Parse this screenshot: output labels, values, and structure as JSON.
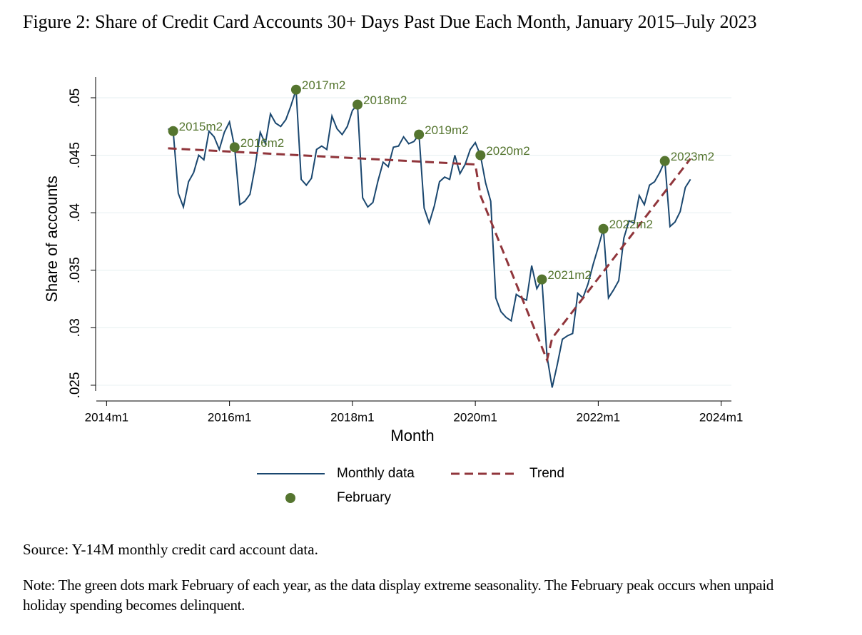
{
  "figure": {
    "title": "Figure 2: Share of Credit Card Accounts 30+ Days Past Due Each Month, January 2015–July 2023",
    "source": "Source: Y-14M monthly credit card account data.",
    "note": "Note: The green dots mark February of each year, as the data display extreme seasonality. The February peak occurs when unpaid holiday spending becomes delinquent."
  },
  "chart_data": {
    "type": "line",
    "x_label": "Month",
    "y_label": "Share of accounts",
    "xlim": [
      "2013m11",
      "2024m3"
    ],
    "xticks": [
      "2014m1",
      "2016m1",
      "2018m1",
      "2020m1",
      "2022m1",
      "2024m1"
    ],
    "ylim": [
      0.0245,
      0.0518
    ],
    "yticks": [
      {
        "value": 0.025,
        "label": ".025"
      },
      {
        "value": 0.03,
        "label": ".03"
      },
      {
        "value": 0.035,
        "label": ".035"
      },
      {
        "value": 0.04,
        "label": ".04"
      },
      {
        "value": 0.045,
        "label": ".045"
      },
      {
        "value": 0.05,
        "label": ".05"
      }
    ],
    "grid": true,
    "series": [
      {
        "name": "Monthly data",
        "color": "#1a476f",
        "style": "solid",
        "x": [
          "2015m1",
          "2015m2",
          "2015m3",
          "2015m4",
          "2015m5",
          "2015m6",
          "2015m7",
          "2015m8",
          "2015m9",
          "2015m10",
          "2015m11",
          "2015m12",
          "2016m1",
          "2016m2",
          "2016m3",
          "2016m4",
          "2016m5",
          "2016m6",
          "2016m7",
          "2016m8",
          "2016m9",
          "2016m10",
          "2016m11",
          "2016m12",
          "2017m1",
          "2017m2",
          "2017m3",
          "2017m4",
          "2017m5",
          "2017m6",
          "2017m7",
          "2017m8",
          "2017m9",
          "2017m10",
          "2017m11",
          "2017m12",
          "2018m1",
          "2018m2",
          "2018m3",
          "2018m4",
          "2018m5",
          "2018m6",
          "2018m7",
          "2018m8",
          "2018m9",
          "2018m10",
          "2018m11",
          "2018m12",
          "2019m1",
          "2019m2",
          "2019m3",
          "2019m4",
          "2019m5",
          "2019m6",
          "2019m7",
          "2019m8",
          "2019m9",
          "2019m10",
          "2019m11",
          "2019m12",
          "2020m1",
          "2020m2",
          "2020m3",
          "2020m4",
          "2020m5",
          "2020m6",
          "2020m7",
          "2020m8",
          "2020m9",
          "2020m10",
          "2020m11",
          "2020m12",
          "2021m1",
          "2021m2",
          "2021m3",
          "2021m4",
          "2021m5",
          "2021m6",
          "2021m7",
          "2021m8",
          "2021m9",
          "2021m10",
          "2021m11",
          "2021m12",
          "2022m1",
          "2022m2",
          "2022m3",
          "2022m4",
          "2022m5",
          "2022m6",
          "2022m7",
          "2022m8",
          "2022m9",
          "2022m10",
          "2022m11",
          "2022m12",
          "2023m1",
          "2023m2",
          "2023m3",
          "2023m4",
          "2023m5",
          "2023m6",
          "2023m7"
        ],
        "values": [
          0.0473,
          0.0471,
          0.0417,
          0.0405,
          0.0427,
          0.0435,
          0.045,
          0.0446,
          0.0471,
          0.0466,
          0.0455,
          0.047,
          0.0479,
          0.0457,
          0.0407,
          0.041,
          0.0416,
          0.044,
          0.047,
          0.046,
          0.0486,
          0.0478,
          0.0475,
          0.0481,
          0.0493,
          0.0507,
          0.0429,
          0.0424,
          0.043,
          0.0455,
          0.0458,
          0.0455,
          0.0484,
          0.0473,
          0.0468,
          0.0475,
          0.0489,
          0.0494,
          0.0413,
          0.0405,
          0.0409,
          0.0428,
          0.0444,
          0.044,
          0.0457,
          0.0458,
          0.0466,
          0.046,
          0.0462,
          0.0468,
          0.0404,
          0.0391,
          0.0406,
          0.0427,
          0.0431,
          0.0429,
          0.045,
          0.0434,
          0.0442,
          0.0455,
          0.0461,
          0.045,
          0.0426,
          0.041,
          0.0326,
          0.0314,
          0.0309,
          0.0306,
          0.0329,
          0.0326,
          0.0324,
          0.0354,
          0.0334,
          0.0342,
          0.0275,
          0.0248,
          0.0268,
          0.029,
          0.0293,
          0.0295,
          0.033,
          0.0326,
          0.0338,
          0.0355,
          0.037,
          0.0386,
          0.0326,
          0.0333,
          0.0341,
          0.0378,
          0.0393,
          0.0391,
          0.0415,
          0.0407,
          0.0424,
          0.0427,
          0.0435,
          0.0445,
          0.0388,
          0.0392,
          0.0401,
          0.0422,
          0.0429
        ]
      },
      {
        "name": "Trend",
        "color": "#90353b",
        "style": "dashed",
        "x": [
          "2015m1",
          "2020m1",
          "2020m2",
          "2021m3",
          "2021m4",
          "2023m7"
        ],
        "values": [
          0.0456,
          0.0442,
          0.0415,
          0.0272,
          0.0291,
          0.0447
        ]
      },
      {
        "name": "February",
        "color": "#55752f",
        "style": "dots",
        "label_points": true,
        "x": [
          "2015m2",
          "2016m2",
          "2017m2",
          "2018m2",
          "2019m2",
          "2020m2",
          "2021m2",
          "2022m2",
          "2023m2"
        ],
        "values": [
          0.0471,
          0.0457,
          0.0507,
          0.0494,
          0.0468,
          0.045,
          0.0342,
          0.0386,
          0.0445
        ]
      }
    ]
  }
}
